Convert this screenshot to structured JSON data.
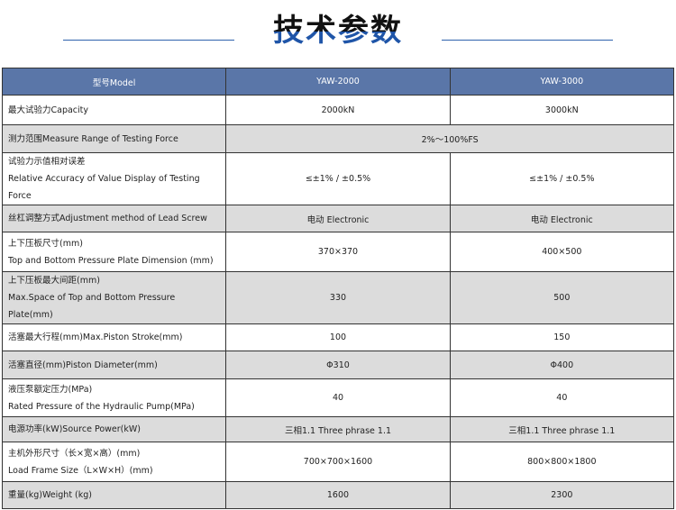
{
  "title": "技术参数",
  "table": {
    "header": [
      "型号Model",
      "YAW-2000",
      "YAW-3000"
    ],
    "rows": [
      {
        "label": [
          "最大试验力Capacity"
        ],
        "values": [
          "2000kN",
          "3000kN"
        ],
        "h": 34
      },
      {
        "label": [
          "测力范围Measure Range of Testing Force"
        ],
        "merged": "2%～100%FS",
        "h": 32
      },
      {
        "label": [
          "试验力示值相对误差",
          "Relative Accuracy of Value Display of   Testing Force"
        ],
        "values": [
          "≤±1% / ±0.5%",
          "≤±1% / ±0.5%"
        ],
        "h": 44
      },
      {
        "label": [
          "丝杠调整方式Adjustment method of Lead Screw"
        ],
        "values": [
          "电动 Electronic",
          "电动 Electronic"
        ],
        "h": 31
      },
      {
        "label": [
          "上下压板尺寸(mm)",
          "Top and Bottom Pressure Plate Dimension (mm)"
        ],
        "values": [
          "370×370",
          "400×500"
        ],
        "h": 45
      },
      {
        "label": [
          "上下压板最大间距(mm)",
          "Max.Space of Top and Bottom Pressure Plate(mm)"
        ],
        "values": [
          "330",
          "500"
        ],
        "h": 42
      },
      {
        "label": [
          "活塞最大行程(mm)Max.Piston Stroke(mm)"
        ],
        "values": [
          "100",
          "150"
        ],
        "h": 31
      },
      {
        "label": [
          "活塞直径(mm)Piston Diameter(mm)"
        ],
        "values": [
          "Φ310",
          "Φ400"
        ],
        "h": 32
      },
      {
        "label": [
          "液压泵额定压力(MPa)",
          "Rated Pressure of the Hydraulic Pump(MPa)"
        ],
        "values": [
          "40",
          "40"
        ],
        "h": 43
      },
      {
        "label": [
          "电源功率(kW)Source Power(kW)"
        ],
        "values": [
          "三相1.1 Three phrase 1.1",
          "三相1.1 Three phrase 1.1"
        ],
        "h": 29
      },
      {
        "label": [
          "主机外形尺寸（长×宽×高）(mm)",
          "Load Frame Size（L×W×H）(mm)"
        ],
        "values": [
          "700×700×1600",
          "800×800×1800"
        ],
        "h": 45
      },
      {
        "label": [
          "重量(kg)Weight (kg)"
        ],
        "values": [
          "1600",
          "2300"
        ],
        "h": 31
      }
    ]
  }
}
